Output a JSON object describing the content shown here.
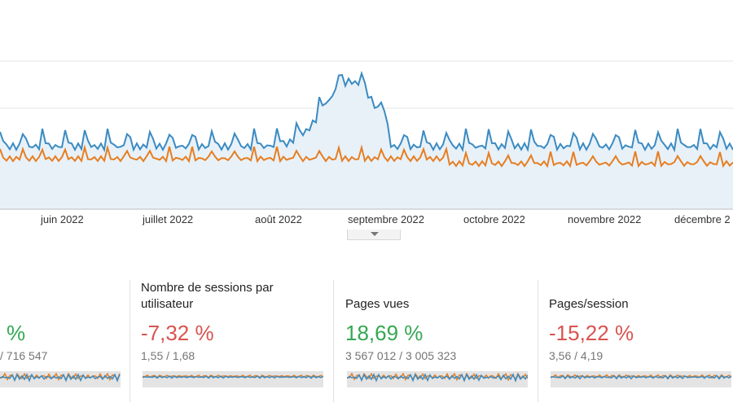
{
  "timeline": {
    "months": [
      "juin 2022",
      "juillet 2022",
      "août 2022",
      "septembre 2022",
      "octobre 2022",
      "novembre 2022",
      "décembre 2"
    ],
    "colors": {
      "current": "#3b8bc2",
      "previous": "#e67e22",
      "area": "#e8f1f8",
      "grid": "#e6e6e6"
    }
  },
  "metrics": [
    {
      "title": "",
      "delta": "%",
      "values": "/ 716 547",
      "delta_color": "#34a853"
    },
    {
      "title": "Nombre de sessions par utilisateur",
      "delta": "-7,32 %",
      "values": "1,55 / 1,68",
      "delta_color": "#d9534f"
    },
    {
      "title": "Pages vues",
      "delta": "18,69 %",
      "values": "3 567 012 / 3 005 323",
      "delta_color": "#34a853"
    },
    {
      "title": "Pages/session",
      "delta": "-15,22 %",
      "values": "3,56 / 4,19",
      "delta_color": "#d9534f"
    }
  ]
}
